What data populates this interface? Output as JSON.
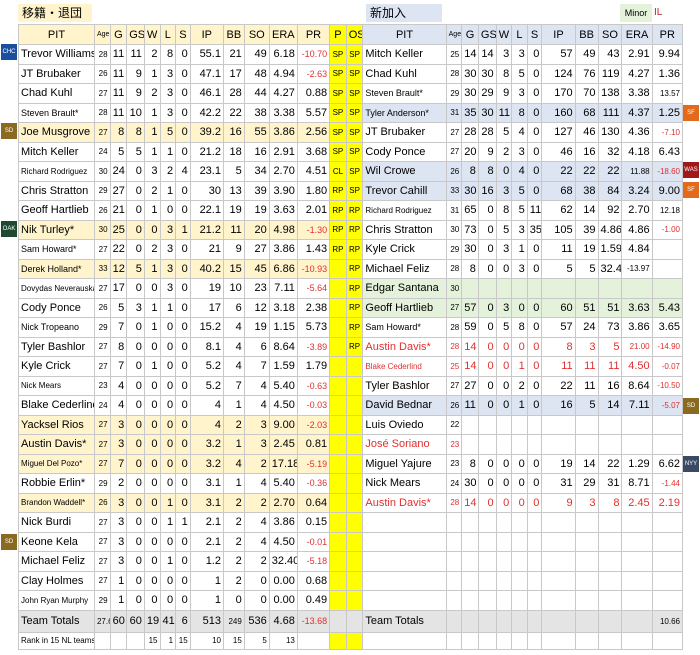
{
  "header": {
    "left_title": "移籍・退団",
    "right_title": "新加入",
    "minor_label": "Minor",
    "il_label": "IL"
  },
  "columns": {
    "left": [
      "PIT",
      "Age",
      "G",
      "GS",
      "W",
      "L",
      "S",
      "IP",
      "BB",
      "SO",
      "ERA",
      "PR"
    ],
    "tags": [
      "P",
      "OS"
    ],
    "right": [
      "PIT",
      "Age",
      "G",
      "GS",
      "W",
      "L",
      "S",
      "IP",
      "BB",
      "SO",
      "ERA",
      "PR"
    ]
  },
  "team_badges": [
    {
      "label": "CHC",
      "color": "#1a4fa0"
    },
    {
      "label": "SD",
      "color": "#8a6a20"
    },
    {
      "label": "OAK",
      "color": "#1d4a30"
    },
    {
      "label": "SD",
      "color": "#8a6a20"
    },
    {
      "label": "SF",
      "color": "#e26a1a"
    },
    {
      "label": "WAS",
      "color": "#a01818"
    },
    {
      "label": "SF",
      "color": "#e26a1a"
    },
    {
      "label": "SD",
      "color": "#8a6a20"
    },
    {
      "label": "NYY",
      "color": "#3a4a64"
    }
  ],
  "rows": [
    {
      "l": [
        "Trevor Williams",
        "28",
        "11",
        "11",
        "2",
        "8",
        "0",
        "55.1",
        "21",
        "49",
        "6.18",
        "-10.70"
      ],
      "p": "SP",
      "os": "SP",
      "r": [
        "Mitch Keller",
        "25",
        "14",
        "14",
        "3",
        "3",
        "0",
        "57",
        "49",
        "43",
        "2.91",
        "9.94"
      ]
    },
    {
      "l": [
        "JT Brubaker",
        "26",
        "11",
        "9",
        "1",
        "3",
        "0",
        "47.1",
        "17",
        "48",
        "4.94",
        "-2.63"
      ],
      "p": "SP",
      "os": "SP",
      "r": [
        "Chad Kuhl",
        "28",
        "30",
        "30",
        "8",
        "5",
        "0",
        "124",
        "76",
        "119",
        "4.27",
        "1.36"
      ]
    },
    {
      "l": [
        "Chad Kuhl",
        "27",
        "11",
        "9",
        "2",
        "3",
        "0",
        "46.1",
        "28",
        "44",
        "4.27",
        "0.88"
      ],
      "p": "SP",
      "os": "SP",
      "r": [
        "Steven Brault*",
        "29",
        "30",
        "29",
        "9",
        "3",
        "0",
        "170",
        "70",
        "138",
        "3.38",
        "13.57"
      ]
    },
    {
      "l": [
        "Steven Brault*",
        "28",
        "11",
        "10",
        "1",
        "3",
        "0",
        "42.2",
        "22",
        "38",
        "3.38",
        "5.57"
      ],
      "p": "SP",
      "os": "SP",
      "r": [
        "Tyler Anderson*",
        "31",
        "35",
        "30",
        "11",
        "8",
        "0",
        "160",
        "68",
        "111",
        "4.37",
        "1.25"
      ]
    },
    {
      "l": [
        "Joe Musgrove",
        "27",
        "8",
        "8",
        "1",
        "5",
        "0",
        "39.2",
        "16",
        "55",
        "3.86",
        "2.56"
      ],
      "p": "SP",
      "os": "SP",
      "r": [
        "JT Brubaker",
        "27",
        "28",
        "28",
        "5",
        "4",
        "0",
        "127",
        "46",
        "130",
        "4.36",
        "-7.10"
      ]
    },
    {
      "l": [
        "Mitch Keller",
        "24",
        "5",
        "5",
        "1",
        "1",
        "0",
        "21.2",
        "18",
        "16",
        "2.91",
        "3.68"
      ],
      "p": "SP",
      "os": "SP",
      "r": [
        "Cody Ponce",
        "27",
        "20",
        "9",
        "2",
        "3",
        "0",
        "46",
        "16",
        "32",
        "4.18",
        "6.43"
      ]
    },
    {
      "l": [
        "Richard Rodriguez",
        "30",
        "24",
        "0",
        "3",
        "2",
        "4",
        "23.1",
        "5",
        "34",
        "2.70",
        "4.51"
      ],
      "p": "CL",
      "os": "SP",
      "r": [
        "Wil Crowe",
        "26",
        "8",
        "8",
        "0",
        "4",
        "0",
        "22",
        "22",
        "22",
        "11.88",
        "-18.60"
      ]
    },
    {
      "l": [
        "Chris Stratton",
        "29",
        "27",
        "0",
        "2",
        "1",
        "0",
        "30",
        "13",
        "39",
        "3.90",
        "1.80"
      ],
      "p": "RP",
      "os": "SP",
      "r": [
        "Trevor Cahill",
        "33",
        "30",
        "16",
        "3",
        "5",
        "0",
        "68",
        "38",
        "84",
        "3.24",
        "9.00"
      ]
    },
    {
      "l": [
        "Geoff Hartlieb",
        "26",
        "21",
        "0",
        "1",
        "0",
        "0",
        "22.1",
        "19",
        "19",
        "3.63",
        "2.01"
      ],
      "p": "RP",
      "os": "RP",
      "r": [
        "Richard Rodriguez",
        "31",
        "65",
        "0",
        "8",
        "5",
        "11",
        "62",
        "14",
        "92",
        "2.70",
        "12.18"
      ]
    },
    {
      "l": [
        "Nik Turley*",
        "30",
        "25",
        "0",
        "0",
        "3",
        "1",
        "21.2",
        "11",
        "20",
        "4.98",
        "-1.30"
      ],
      "p": "RP",
      "os": "RP",
      "r": [
        "Chris Stratton",
        "30",
        "73",
        "0",
        "5",
        "3",
        "35",
        "105",
        "39",
        "4.86",
        "4.86",
        "-1.00"
      ]
    },
    {
      "l": [
        "Sam Howard*",
        "27",
        "22",
        "0",
        "2",
        "3",
        "0",
        "21",
        "9",
        "27",
        "3.86",
        "1.43"
      ],
      "p": "RP",
      "os": "RP",
      "r": [
        "Kyle Crick",
        "29",
        "30",
        "0",
        "3",
        "1",
        "0",
        "11",
        "19",
        "1.59",
        "4.84",
        ""
      ]
    },
    {
      "l": [
        "Derek Holland*",
        "33",
        "12",
        "5",
        "1",
        "3",
        "0",
        "40.2",
        "15",
        "45",
        "6.86",
        "-10.93"
      ],
      "p": "",
      "os": "RP",
      "r": [
        "Michael Feliz",
        "28",
        "8",
        "0",
        "0",
        "3",
        "0",
        "5",
        "5",
        "32.40",
        "-13.97",
        ""
      ]
    },
    {
      "l": [
        "Dovydas Neverauskas",
        "27",
        "17",
        "0",
        "0",
        "3",
        "0",
        "19",
        "10",
        "23",
        "7.11",
        "-5.64"
      ],
      "p": "",
      "os": "RP",
      "r": [
        "Edgar Santana",
        "30",
        "",
        "",
        "",
        "",
        "",
        "",
        "",
        "",
        "",
        ""
      ]
    },
    {
      "l": [
        "Cody Ponce",
        "26",
        "5",
        "3",
        "1",
        "1",
        "0",
        "17",
        "6",
        "12",
        "3.18",
        "2.38"
      ],
      "p": "",
      "os": "RP",
      "r": [
        "Geoff Hartlieb",
        "27",
        "57",
        "0",
        "3",
        "0",
        "0",
        "60",
        "51",
        "51",
        "3.63",
        "5.43"
      ]
    },
    {
      "l": [
        "Nick Tropeano",
        "29",
        "7",
        "0",
        "1",
        "0",
        "0",
        "15.2",
        "4",
        "19",
        "1.15",
        "5.73"
      ],
      "p": "",
      "os": "RP",
      "r": [
        "Sam Howard*",
        "28",
        "59",
        "0",
        "5",
        "8",
        "0",
        "57",
        "24",
        "73",
        "3.86",
        "3.65"
      ]
    },
    {
      "l": [
        "Tyler Bashlor",
        "27",
        "8",
        "0",
        "0",
        "0",
        "0",
        "8.1",
        "4",
        "6",
        "8.64",
        "-3.89"
      ],
      "p": "",
      "os": "RP",
      "r": [
        "Austin Davis*",
        "28",
        "14",
        "0",
        "0",
        "0",
        "0",
        "8",
        "3",
        "5",
        "21.00",
        "-14.90"
      ]
    },
    {
      "l": [
        "Kyle Crick",
        "27",
        "7",
        "0",
        "1",
        "0",
        "0",
        "5.2",
        "4",
        "7",
        "1.59",
        "1.79"
      ],
      "p": "",
      "os": "",
      "r": [
        "Blake Cederlind",
        "25",
        "14",
        "0",
        "0",
        "1",
        "0",
        "11",
        "11",
        "11",
        "4.50",
        "-0.07"
      ]
    },
    {
      "l": [
        "Nick Mears",
        "23",
        "4",
        "0",
        "0",
        "0",
        "0",
        "5.2",
        "7",
        "4",
        "5.40",
        "-0.63"
      ],
      "p": "",
      "os": "",
      "r": [
        "Tyler Bashlor",
        "27",
        "27",
        "0",
        "0",
        "2",
        "0",
        "22",
        "11",
        "16",
        "8.64",
        "-10.50"
      ]
    },
    {
      "l": [
        "Blake Cederlind",
        "24",
        "4",
        "0",
        "0",
        "0",
        "0",
        "4",
        "1",
        "4",
        "4.50",
        "-0.03"
      ],
      "p": "",
      "os": "",
      "r": [
        "David Bednar",
        "26",
        "11",
        "0",
        "0",
        "1",
        "0",
        "16",
        "5",
        "14",
        "7.11",
        "-5.07"
      ]
    },
    {
      "l": [
        "Yacksel Rios",
        "27",
        "3",
        "0",
        "0",
        "0",
        "0",
        "4",
        "2",
        "3",
        "9.00",
        "-2.03"
      ],
      "p": "",
      "os": "",
      "r": [
        "Luis Oviedo",
        "22",
        "",
        "",
        "",
        "",
        "",
        "",
        "",
        "",
        "",
        ""
      ]
    },
    {
      "l": [
        "Austin Davis*",
        "27",
        "3",
        "0",
        "0",
        "0",
        "0",
        "3.2",
        "1",
        "3",
        "2.45",
        "0.81"
      ],
      "p": "",
      "os": "",
      "r": [
        "José Soriano",
        "23",
        "",
        "",
        "",
        "",
        "",
        "",
        "",
        "",
        "",
        ""
      ]
    },
    {
      "l": [
        "Miguel Del Pozo*",
        "27",
        "7",
        "0",
        "0",
        "0",
        "0",
        "3.2",
        "4",
        "2",
        "17.18",
        "-5.19"
      ],
      "p": "",
      "os": "",
      "r": [
        "Miguel Yajure",
        "23",
        "8",
        "0",
        "0",
        "0",
        "0",
        "19",
        "14",
        "22",
        "1.29",
        "6.62"
      ]
    },
    {
      "l": [
        "Robbie Erlin*",
        "29",
        "2",
        "0",
        "0",
        "0",
        "0",
        "3.1",
        "1",
        "4",
        "5.40",
        "-0.36"
      ],
      "p": "",
      "os": "",
      "r": [
        "Nick Mears",
        "24",
        "30",
        "0",
        "0",
        "0",
        "0",
        "31",
        "29",
        "31",
        "8.71",
        "-1.44"
      ]
    },
    {
      "l": [
        "Brandon Waddell*",
        "26",
        "3",
        "0",
        "0",
        "1",
        "0",
        "3.1",
        "2",
        "2",
        "2.70",
        "0.64"
      ],
      "p": "",
      "os": "",
      "r": [
        "Austin Davis*",
        "28",
        "14",
        "0",
        "0",
        "0",
        "0",
        "9",
        "3",
        "8",
        "2.45",
        "2.19"
      ]
    },
    {
      "l": [
        "Nick Burdi",
        "27",
        "3",
        "0",
        "0",
        "1",
        "1",
        "2.1",
        "2",
        "4",
        "3.86",
        "0.15"
      ],
      "p": "",
      "os": "",
      "r": [
        "",
        "",
        "",
        "",
        "",
        "",
        "",
        "",
        "",
        "",
        "",
        ""
      ]
    },
    {
      "l": [
        "Keone Kela",
        "27",
        "3",
        "0",
        "0",
        "0",
        "0",
        "2.1",
        "2",
        "4",
        "4.50",
        "-0.01"
      ],
      "p": "",
      "os": "",
      "r": [
        "",
        "",
        "",
        "",
        "",
        "",
        "",
        "",
        "",
        "",
        "",
        ""
      ]
    },
    {
      "l": [
        "Michael Feliz",
        "27",
        "3",
        "0",
        "0",
        "1",
        "0",
        "1.2",
        "2",
        "2",
        "32.40",
        "-5.18"
      ],
      "p": "",
      "os": "",
      "r": [
        "",
        "",
        "",
        "",
        "",
        "",
        "",
        "",
        "",
        "",
        "",
        ""
      ]
    },
    {
      "l": [
        "Clay Holmes",
        "27",
        "1",
        "0",
        "0",
        "0",
        "0",
        "1",
        "2",
        "0",
        "0.00",
        "0.68"
      ],
      "p": "",
      "os": "",
      "r": [
        "",
        "",
        "",
        "",
        "",
        "",
        "",
        "",
        "",
        "",
        "",
        ""
      ]
    },
    {
      "l": [
        "John Ryan Murphy",
        "29",
        "1",
        "0",
        "0",
        "0",
        "0",
        "1",
        "0",
        "0",
        "0.00",
        "0.49"
      ],
      "p": "",
      "os": "",
      "r": [
        "",
        "",
        "",
        "",
        "",
        "",
        "",
        "",
        "",
        "",
        "",
        ""
      ]
    }
  ],
  "totals": {
    "left": [
      "Team Totals",
      "27.6",
      "60",
      "60",
      "19",
      "41",
      "6",
      "513",
      "249",
      "536",
      "4.68",
      "-13.68"
    ],
    "right": [
      "Team Totals",
      "",
      "",
      "",
      "",
      "",
      "",
      "",
      "",
      "",
      "",
      "10.66"
    ]
  },
  "rank": {
    "left": [
      "Rank in 15 NL teams",
      "",
      "",
      "",
      "15",
      "1",
      "15",
      "10",
      "15",
      "5",
      "13",
      ""
    ]
  }
}
